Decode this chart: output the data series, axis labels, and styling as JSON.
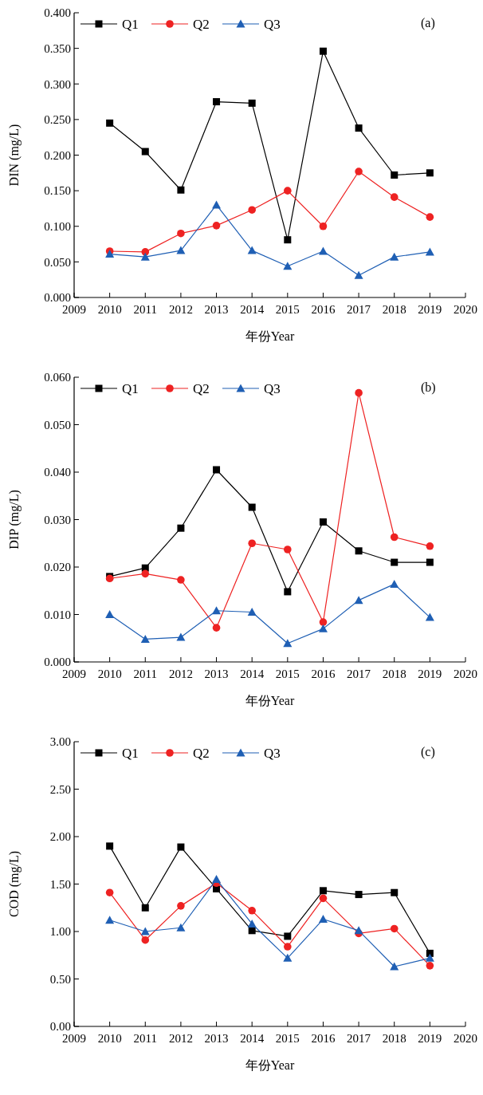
{
  "chart_data": [
    {
      "type": "line",
      "xlabel": "年份Year",
      "ylabel": "DIN (mg/L)",
      "annotations": [
        "(a)"
      ],
      "x": [
        2010,
        2011,
        2012,
        2013,
        2014,
        2015,
        2016,
        2017,
        2018,
        2019
      ],
      "xlim": [
        2009,
        2020
      ],
      "xticks": [
        2009,
        2010,
        2011,
        2012,
        2013,
        2014,
        2015,
        2016,
        2017,
        2018,
        2019,
        2020
      ],
      "ylim": [
        0,
        0.4
      ],
      "yticks": [
        {
          "value": 0,
          "label": "0.000"
        },
        {
          "value": 0.05,
          "label": "0.050"
        },
        {
          "value": 0.1,
          "label": "0.100"
        },
        {
          "value": 0.15,
          "label": "0.150"
        },
        {
          "value": 0.2,
          "label": "0.200"
        },
        {
          "value": 0.25,
          "label": "0.250"
        },
        {
          "value": 0.3,
          "label": "0.300"
        },
        {
          "value": 0.35,
          "label": "0.350"
        },
        {
          "value": 0.4,
          "label": "0.400"
        }
      ],
      "legend": "top left",
      "grid": false,
      "series": [
        {
          "name": "Q1",
          "color": "#000000",
          "marker": "square",
          "values": [
            0.245,
            0.205,
            0.151,
            0.275,
            0.273,
            0.081,
            0.346,
            0.238,
            0.172,
            0.175
          ]
        },
        {
          "name": "Q2",
          "color": "#ee2222",
          "marker": "circle",
          "values": [
            0.065,
            0.064,
            0.09,
            0.101,
            0.123,
            0.15,
            0.1,
            0.177,
            0.141,
            0.113
          ]
        },
        {
          "name": "Q3",
          "color": "#1f5fb4",
          "marker": "triangle",
          "values": [
            0.061,
            0.057,
            0.066,
            0.13,
            0.066,
            0.044,
            0.065,
            0.031,
            0.057,
            0.064
          ]
        }
      ]
    },
    {
      "type": "line",
      "xlabel": "年份Year",
      "ylabel": "DIP (mg/L)",
      "annotations": [
        "(b)"
      ],
      "x": [
        2010,
        2011,
        2012,
        2013,
        2014,
        2015,
        2016,
        2017,
        2018,
        2019
      ],
      "xlim": [
        2009,
        2020
      ],
      "xticks": [
        2009,
        2010,
        2011,
        2012,
        2013,
        2014,
        2015,
        2016,
        2017,
        2018,
        2019,
        2020
      ],
      "ylim": [
        0,
        0.06
      ],
      "yticks": [
        {
          "value": 0,
          "label": "0.000"
        },
        {
          "value": 0.01,
          "label": "0.010"
        },
        {
          "value": 0.02,
          "label": "0.020"
        },
        {
          "value": 0.03,
          "label": "0.030"
        },
        {
          "value": 0.04,
          "label": "0.040"
        },
        {
          "value": 0.05,
          "label": "0.050"
        },
        {
          "value": 0.06,
          "label": "0.060"
        }
      ],
      "legend": "top left",
      "grid": false,
      "series": [
        {
          "name": "Q1",
          "color": "#000000",
          "marker": "square",
          "values": [
            0.018,
            0.0198,
            0.0282,
            0.0405,
            0.0326,
            0.0148,
            0.0295,
            0.0234,
            0.021,
            0.021
          ]
        },
        {
          "name": "Q2",
          "color": "#ee2222",
          "marker": "circle",
          "values": [
            0.0176,
            0.0186,
            0.0173,
            0.0072,
            0.025,
            0.0237,
            0.0084,
            0.0567,
            0.0263,
            0.0244
          ]
        },
        {
          "name": "Q3",
          "color": "#1f5fb4",
          "marker": "triangle",
          "values": [
            0.01,
            0.0048,
            0.0052,
            0.0108,
            0.0105,
            0.0039,
            0.007,
            0.013,
            0.0164,
            0.0094
          ]
        }
      ]
    },
    {
      "type": "line",
      "xlabel": "年份Year",
      "ylabel": "COD (mg/L)",
      "annotations": [
        "(c)"
      ],
      "x": [
        2010,
        2011,
        2012,
        2013,
        2014,
        2015,
        2016,
        2017,
        2018,
        2019
      ],
      "xlim": [
        2009,
        2020
      ],
      "xticks": [
        2009,
        2010,
        2011,
        2012,
        2013,
        2014,
        2015,
        2016,
        2017,
        2018,
        2019,
        2020
      ],
      "ylim": [
        0,
        3
      ],
      "yticks": [
        {
          "value": 0,
          "label": "0.00"
        },
        {
          "value": 0.5,
          "label": "0.50"
        },
        {
          "value": 1,
          "label": "1.00"
        },
        {
          "value": 1.5,
          "label": "1.50"
        },
        {
          "value": 2,
          "label": "2.00"
        },
        {
          "value": 2.5,
          "label": "2.50"
        },
        {
          "value": 3,
          "label": "3.00"
        }
      ],
      "legend": "top left",
      "grid": false,
      "series": [
        {
          "name": "Q1",
          "color": "#000000",
          "marker": "square",
          "values": [
            1.9,
            1.25,
            1.89,
            1.45,
            1.01,
            0.95,
            1.43,
            1.39,
            1.41,
            0.77
          ]
        },
        {
          "name": "Q2",
          "color": "#ee2222",
          "marker": "circle",
          "values": [
            1.41,
            0.91,
            1.27,
            1.51,
            1.22,
            0.84,
            1.35,
            0.98,
            1.03,
            0.64
          ]
        },
        {
          "name": "Q3",
          "color": "#1f5fb4",
          "marker": "triangle",
          "values": [
            1.12,
            1.0,
            1.04,
            1.55,
            1.08,
            0.72,
            1.13,
            1.01,
            0.63,
            0.72
          ]
        }
      ]
    }
  ]
}
